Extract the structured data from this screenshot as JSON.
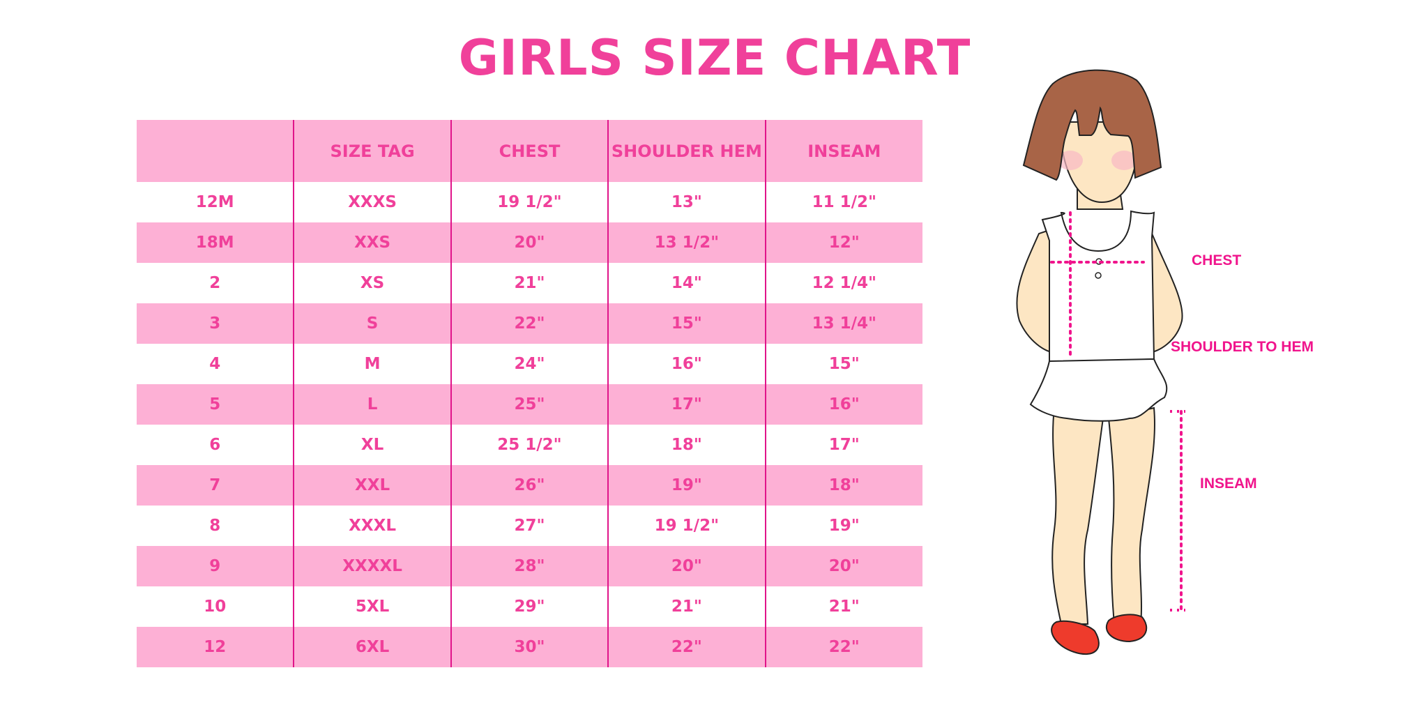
{
  "title": "GIRLS SIZE CHART",
  "table": {
    "headers": [
      "",
      "SIZE TAG",
      "CHEST",
      "SHOULDER HEM",
      "INSEAM"
    ],
    "rows": [
      [
        "12M",
        "XXXS",
        "19 1/2\"",
        "13\"",
        "11 1/2\""
      ],
      [
        "18M",
        "XXS",
        "20\"",
        "13 1/2\"",
        "12\""
      ],
      [
        "2",
        "XS",
        "21\"",
        "14\"",
        "12 1/4\""
      ],
      [
        "3",
        "S",
        "22\"",
        "15\"",
        "13 1/4\""
      ],
      [
        "4",
        "M",
        "24\"",
        "16\"",
        "15\""
      ],
      [
        "5",
        "L",
        "25\"",
        "17\"",
        "16\""
      ],
      [
        "6",
        "XL",
        "25 1/2\"",
        "18\"",
        "17\""
      ],
      [
        "7",
        "XXL",
        "26\"",
        "19\"",
        "18\""
      ],
      [
        "8",
        "XXXL",
        "27\"",
        "19 1/2\"",
        "19\""
      ],
      [
        "9",
        "XXXXL",
        "28\"",
        "20\"",
        "20\""
      ],
      [
        "10",
        "5XL",
        "29\"",
        "21\"",
        "21\""
      ],
      [
        "12",
        "6XL",
        "30\"",
        "22\"",
        "22\""
      ]
    ]
  },
  "figure": {
    "labels": {
      "chest": "CHEST",
      "shoulder_to_hem": "SHOULDER TO HEM",
      "inseam": "INSEAM"
    }
  },
  "colors": {
    "pink_band": "#fdb0d5",
    "text": "#f0409a",
    "divider": "#e0148a",
    "measure": "#f0148c"
  }
}
